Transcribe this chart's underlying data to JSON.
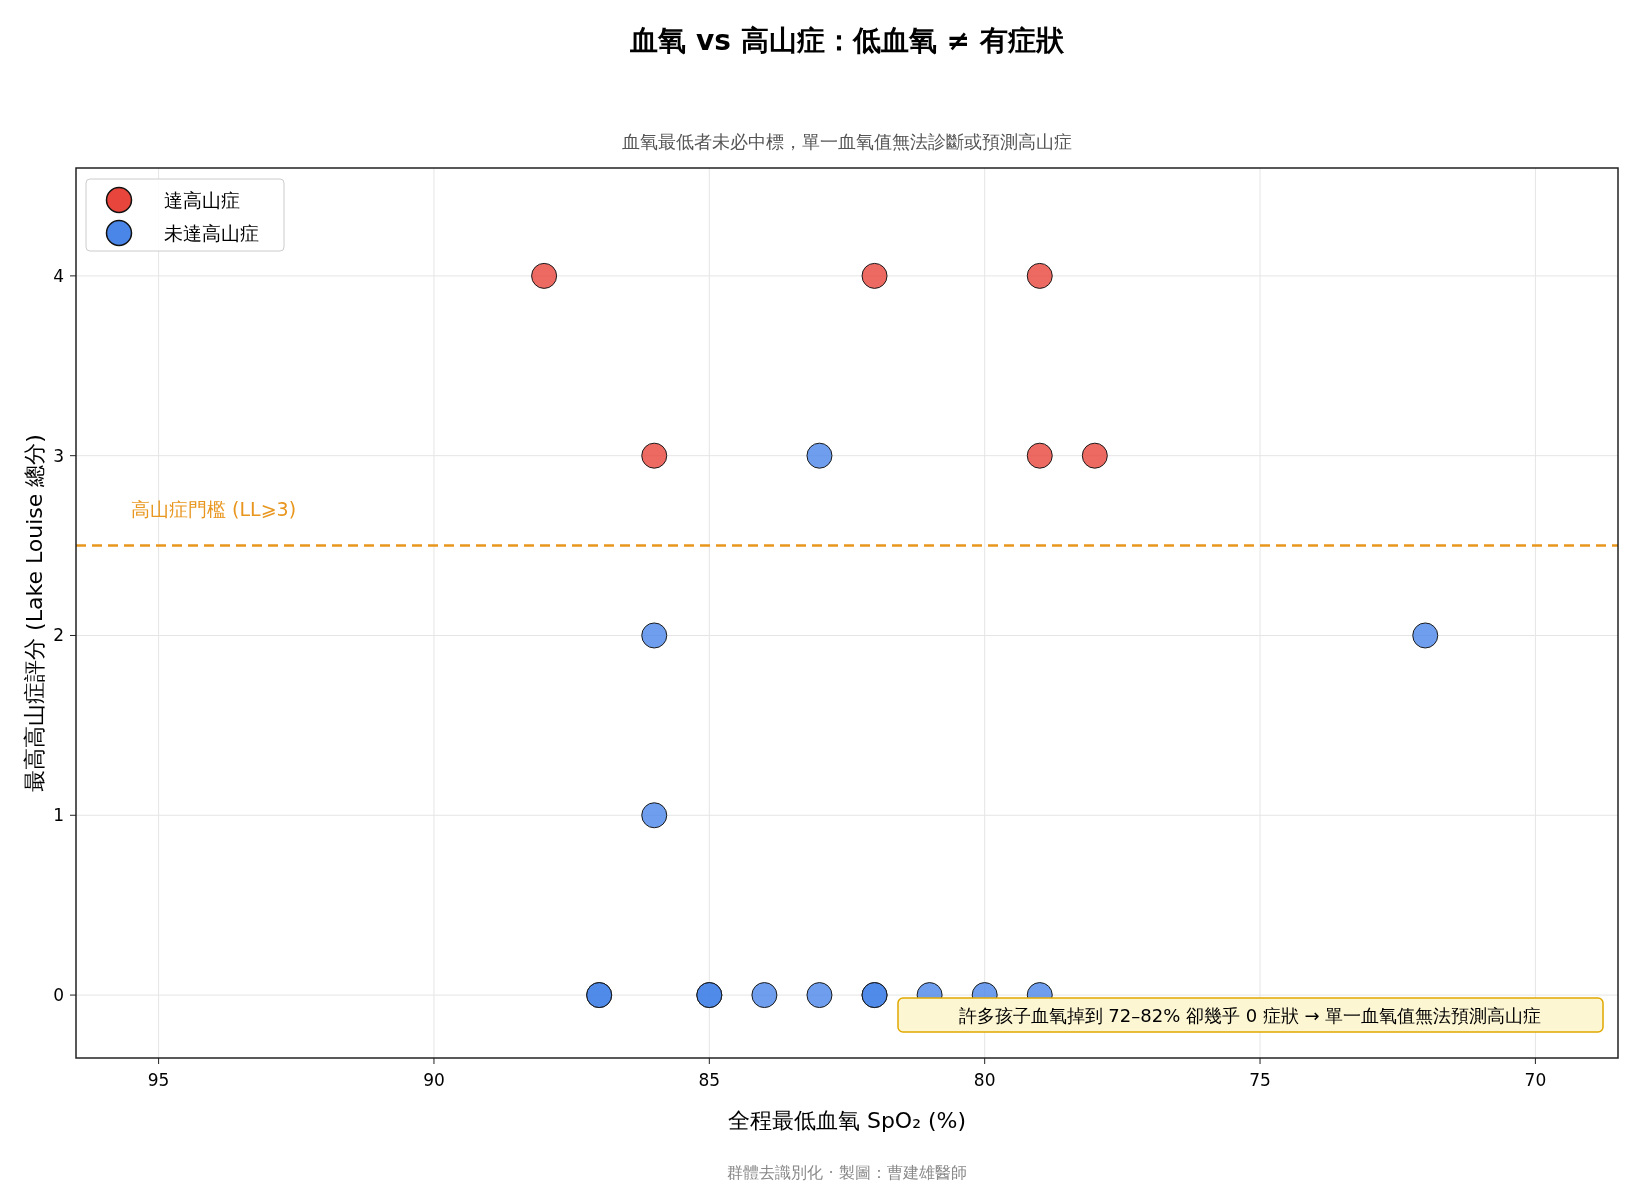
{
  "chart_data": {
    "type": "scatter",
    "title": "血氧 vs 高山症：低血氧 ≠ 有症狀",
    "subtitle": "血氧最低者未必中標，單一血氧值無法診斷或預測高山症",
    "xlabel": "全程最低血氧 SpO₂ (%)",
    "ylabel": "最高高山症評分 (Lake Louise 總分)",
    "xlim": [
      96.5,
      68.5
    ],
    "xticks": [
      95,
      90,
      85,
      80,
      75,
      70
    ],
    "ylim": [
      -0.35,
      4.6
    ],
    "yticks": [
      0,
      1,
      2,
      3,
      4
    ],
    "grid": true,
    "legend": "top left",
    "marker": "circle",
    "series": [
      {
        "name": "達高山症",
        "color": "#e8453c",
        "x": [
          88,
          82,
          79,
          86,
          79,
          78
        ],
        "values": [
          4,
          4,
          4,
          3,
          3,
          3
        ]
      },
      {
        "name": "未達高山症",
        "color": "#4a86e8",
        "x": [
          83,
          86,
          86,
          72,
          87,
          87,
          85,
          85,
          84,
          83,
          82,
          82,
          81,
          80,
          79
        ],
        "values": [
          3,
          2,
          1,
          2,
          0,
          0,
          0,
          0,
          0,
          0,
          0,
          0,
          0,
          0,
          0
        ]
      }
    ],
    "ref_lines": [
      {
        "axis": "y",
        "value": 2.5,
        "label": "高山症門檻 (LL⩾3)",
        "color": "#e8961e",
        "line_style": "dashed"
      }
    ],
    "annotations": [
      "許多孩子血氧掉到 72–82% 卻幾乎 0 症狀 → 單一血氧值無法預測高山症",
      "群體去識別化 ·  製圖：曹建雄醫師"
    ]
  }
}
